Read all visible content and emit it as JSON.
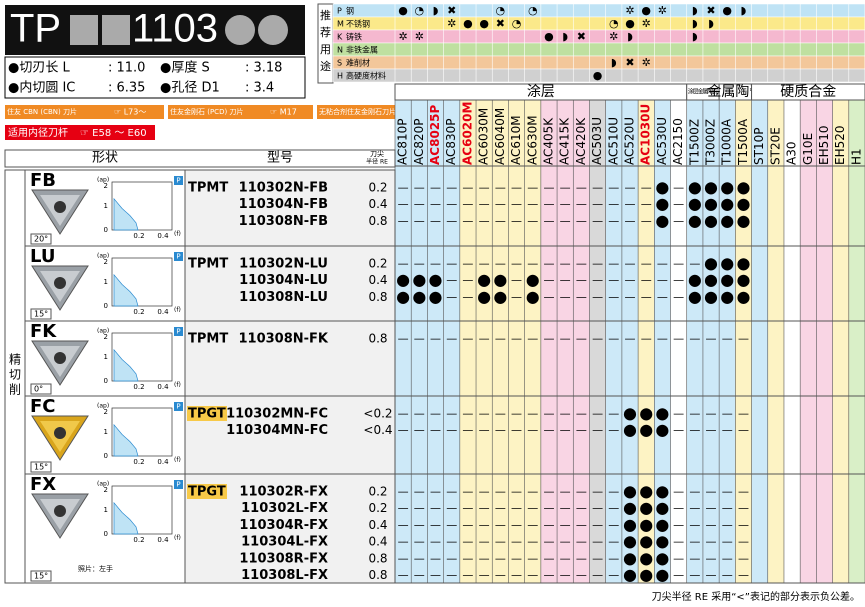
{
  "header": {
    "title_prefix": "TP",
    "title_code": "1103",
    "specs": [
      {
        "label": "●切刃长 L",
        "value": ": 11.0"
      },
      {
        "label": "●厚度 S",
        "value": ": 3.18"
      },
      {
        "label": "●内切圆 IC",
        "value": ": 6.35"
      },
      {
        "label": "●孔径 D1",
        "value": ": 3.4"
      }
    ],
    "links": [
      {
        "text": "住友 CBN (CBN) 刀片",
        "ref": "☞ L73～"
      },
      {
        "text": "住友金刚石 (PCD) 刀片",
        "ref": "☞ M17"
      },
      {
        "text": "无粘合剂住友金刚石刀片",
        "ref": "☞ M26"
      }
    ],
    "holder": {
      "text": "适用内径刀杆",
      "ref": "☞ E58 ～ E60"
    }
  },
  "application": {
    "label": [
      "推",
      "荐",
      "用",
      "途"
    ],
    "rows": [
      {
        "code": "P",
        "name": "钢",
        "color": "#bfe3f5",
        "marks": [
          "●",
          "◔",
          "◗",
          "✖",
          null,
          null,
          "◔",
          null,
          "◔",
          null,
          null,
          null,
          null,
          null,
          "✲",
          "●",
          "✲",
          null,
          "◗",
          "✖",
          "●",
          "◗",
          null,
          null,
          null,
          null,
          null,
          null,
          null
        ]
      },
      {
        "code": "M",
        "name": "不锈钢",
        "color": "#fbe98a",
        "marks": [
          null,
          null,
          null,
          "✲",
          "●",
          "●",
          "✖",
          "◔",
          null,
          null,
          null,
          null,
          null,
          "◔",
          "●",
          "✲",
          null,
          null,
          "◗",
          "◗",
          null,
          null,
          null,
          null,
          null,
          null,
          null,
          null,
          null
        ]
      },
      {
        "code": "K",
        "name": "铸铁",
        "color": "#f5b8cf",
        "marks": [
          "✲",
          "✲",
          null,
          null,
          null,
          null,
          null,
          null,
          null,
          "●",
          "◗",
          "✖",
          null,
          "✲",
          "◗",
          null,
          null,
          null,
          "◗",
          null,
          null,
          null,
          null,
          null,
          null,
          null,
          null,
          null,
          null
        ]
      },
      {
        "code": "N",
        "name": "非铁金属",
        "color": "#bfe0a0",
        "marks": [
          null,
          null,
          null,
          null,
          null,
          null,
          null,
          null,
          null,
          null,
          null,
          null,
          null,
          null,
          null,
          null,
          null,
          null,
          null,
          null,
          null,
          null,
          null,
          null,
          null,
          null,
          null,
          null,
          null
        ]
      },
      {
        "code": "S",
        "name": "难削材",
        "color": "#f3c79a",
        "marks": [
          null,
          null,
          null,
          null,
          null,
          null,
          null,
          null,
          null,
          null,
          null,
          null,
          null,
          "◗",
          "✖",
          "✲",
          null,
          null,
          null,
          null,
          null,
          null,
          null,
          null,
          null,
          null,
          null,
          null,
          null
        ]
      },
      {
        "code": "H",
        "name": "高硬度材料",
        "color": "#d0d0d0",
        "marks": [
          null,
          null,
          null,
          null,
          null,
          null,
          null,
          null,
          null,
          null,
          null,
          null,
          "●",
          null,
          null,
          null,
          null,
          null,
          null,
          null,
          null,
          null,
          null,
          null,
          null,
          null,
          null,
          null,
          null
        ]
      }
    ]
  },
  "grade_groups": [
    {
      "label": "涂层",
      "span": 18
    },
    {
      "label": "涂层金属陶瓷",
      "span": 2
    },
    {
      "label": "金属陶瓷",
      "span": 2
    },
    {
      "label": "硬质合金",
      "span": 7
    }
  ],
  "grades": [
    {
      "name": "AC810P",
      "bg": "#cde9f8",
      "color": "#000"
    },
    {
      "name": "AC820P",
      "bg": "#cde9f8",
      "color": "#000"
    },
    {
      "name": "AC8025P",
      "bg": "#cde9f8",
      "color": "#e60012"
    },
    {
      "name": "AC830P",
      "bg": "#cde9f8",
      "color": "#000"
    },
    {
      "name": "AC6020M",
      "bg": "#fdf3c4",
      "color": "#e60012"
    },
    {
      "name": "AC6030M",
      "bg": "#fdf3c4",
      "color": "#000"
    },
    {
      "name": "AC6040M",
      "bg": "#fdf3c4",
      "color": "#000"
    },
    {
      "name": "AC610M",
      "bg": "#fdf3c4",
      "color": "#000"
    },
    {
      "name": "AC630M",
      "bg": "#fdf3c4",
      "color": "#000"
    },
    {
      "name": "AC405K",
      "bg": "#f9d5e4",
      "color": "#000"
    },
    {
      "name": "AC415K",
      "bg": "#f9d5e4",
      "color": "#000"
    },
    {
      "name": "AC420K",
      "bg": "#f9d5e4",
      "color": "#000"
    },
    {
      "name": "AC503U",
      "bg": "#d9d9d9",
      "color": "#000"
    },
    {
      "name": "AC510U",
      "bg": "#cde9f8",
      "color": "#000"
    },
    {
      "name": "AC520U",
      "bg": "#cde9f8",
      "color": "#000"
    },
    {
      "name": "AC1030U",
      "bg": "#fdf3c4",
      "color": "#e60012"
    },
    {
      "name": "AC530U",
      "bg": "#cde9f8",
      "color": "#000"
    },
    {
      "name": "AC2150",
      "bg": "#ffffff",
      "color": "#000"
    },
    {
      "name": "T1500Z",
      "bg": "#cde9f8",
      "color": "#000"
    },
    {
      "name": "T3000Z",
      "bg": "#cde9f8",
      "color": "#000"
    },
    {
      "name": "T1000A",
      "bg": "#cde9f8",
      "color": "#000"
    },
    {
      "name": "T1500A",
      "bg": "#fdf3c4",
      "color": "#000"
    },
    {
      "name": "ST10P",
      "bg": "#cde9f8",
      "color": "#000"
    },
    {
      "name": "ST20E",
      "bg": "#fdf3c4",
      "color": "#000"
    },
    {
      "name": "A30",
      "bg": "#ffffff",
      "color": "#000"
    },
    {
      "name": "G10E",
      "bg": "#f9d5e4",
      "color": "#000"
    },
    {
      "name": "EH510",
      "bg": "#f9d5e4",
      "color": "#000"
    },
    {
      "name": "EH520",
      "bg": "#fdf3c4",
      "color": "#000"
    },
    {
      "name": "H1",
      "bg": "#d9efc7",
      "color": "#000"
    }
  ],
  "table": {
    "headers": {
      "shape": "形状",
      "model": "型号",
      "re_1": "刀尖",
      "re_2": "半径 RE"
    },
    "side_label": [
      "精",
      "切",
      "削"
    ],
    "chip_chart": {
      "y_unit": "(ap)",
      "x_unit": "(f)",
      "y_2": "2",
      "y_1": "1",
      "y_0": "0",
      "x_1": "0.2",
      "x_2": "0.4",
      "badge": "P"
    },
    "tools": [
      {
        "name": "FB",
        "angle": "20°",
        "rows": [
          {
            "prefix": "TPMT",
            "code": "110302N-FB",
            "re": 0.2,
            "cells": [
              "—",
              "—",
              "—",
              "—",
              "—",
              "—",
              "—",
              "—",
              "—",
              "—",
              "—",
              "—",
              "—",
              "—",
              "—",
              "—",
              "●",
              "—",
              "●",
              "●",
              "●",
              "●",
              null,
              null,
              null,
              null,
              null,
              null,
              null
            ]
          },
          {
            "code": "110304N-FB",
            "re": 0.4,
            "cells": [
              "—",
              "—",
              "—",
              "—",
              "—",
              "—",
              "—",
              "—",
              "—",
              "—",
              "—",
              "—",
              "—",
              "—",
              "—",
              "—",
              "●",
              "—",
              "●",
              "●",
              "●",
              "●",
              null,
              null,
              null,
              null,
              null,
              null,
              null
            ]
          },
          {
            "code": "110308N-FB",
            "re": 0.8,
            "cells": [
              "—",
              "—",
              "—",
              "—",
              "—",
              "—",
              "—",
              "—",
              "—",
              "—",
              "—",
              "—",
              "—",
              "—",
              "—",
              "—",
              "●",
              "—",
              "●",
              "●",
              "●",
              "●",
              null,
              null,
              null,
              null,
              null,
              null,
              null
            ]
          }
        ]
      },
      {
        "name": "LU",
        "angle": "15°",
        "rows": [
          {
            "prefix": "TPMT",
            "code": "110302N-LU",
            "re": 0.2,
            "cells": [
              "—",
              "—",
              "—",
              "—",
              "—",
              "—",
              "—",
              "—",
              "—",
              "—",
              "—",
              "—",
              "—",
              "—",
              "—",
              "—",
              "—",
              "—",
              "—",
              "●",
              "●",
              "●",
              null,
              null,
              null,
              null,
              null,
              null,
              null
            ]
          },
          {
            "code": "110304N-LU",
            "re": 0.4,
            "cells": [
              "●",
              "●",
              "●",
              "—",
              "—",
              "●",
              "●",
              "—",
              "●",
              "—",
              "—",
              "—",
              "—",
              "—",
              "—",
              "—",
              "—",
              "—",
              "●",
              "●",
              "●",
              "●",
              null,
              null,
              null,
              null,
              null,
              null,
              null
            ]
          },
          {
            "code": "110308N-LU",
            "re": 0.8,
            "cells": [
              "●",
              "●",
              "●",
              "—",
              "—",
              "●",
              "●",
              "—",
              "●",
              "—",
              "—",
              "—",
              "—",
              "—",
              "—",
              "—",
              "—",
              "—",
              "●",
              "●",
              "●",
              "●",
              null,
              null,
              null,
              null,
              null,
              null,
              null
            ]
          }
        ]
      },
      {
        "name": "FK",
        "angle": "0°",
        "rows": [
          {
            "prefix": "TPMT",
            "code": "110308N-FK",
            "re": 0.8,
            "cells": [
              "—",
              "—",
              "—",
              "—",
              "—",
              "—",
              "—",
              "—",
              "—",
              "—",
              "—",
              "—",
              "—",
              "—",
              "—",
              "—",
              "—",
              "—",
              "—",
              "—",
              "—",
              "—",
              null,
              null,
              null,
              null,
              null,
              null,
              null
            ]
          }
        ]
      },
      {
        "name": "FC",
        "angle": "15°",
        "rows": [
          {
            "prefix": "TPGT",
            "code": "110302MN-FC",
            "re": "<0.2",
            "cells": [
              "—",
              "—",
              "—",
              "—",
              "—",
              "—",
              "—",
              "—",
              "—",
              "—",
              "—",
              "—",
              "—",
              "—",
              "●",
              "●",
              "●",
              "—",
              "—",
              "—",
              "—",
              "—",
              null,
              null,
              null,
              null,
              null,
              null,
              null
            ]
          },
          {
            "code": "110304MN-FC",
            "re": "<0.4",
            "cells": [
              "—",
              "—",
              "—",
              "—",
              "—",
              "—",
              "—",
              "—",
              "—",
              "—",
              "—",
              "—",
              "—",
              "—",
              "●",
              "●",
              "●",
              "—",
              "—",
              "—",
              "—",
              "—",
              null,
              null,
              null,
              null,
              null,
              null,
              null
            ]
          }
        ]
      },
      {
        "name": "FX",
        "angle": "15°",
        "note": "照片：左手",
        "rows": [
          {
            "prefix": "TPGT",
            "code": "110302R-FX",
            "re": 0.2,
            "cells": [
              "—",
              "—",
              "—",
              "—",
              "—",
              "—",
              "—",
              "—",
              "—",
              "—",
              "—",
              "—",
              "—",
              "—",
              "●",
              "●",
              "●",
              "—",
              "—",
              "—",
              "—",
              "—",
              null,
              null,
              null,
              null,
              null,
              null,
              null
            ]
          },
          {
            "code": "110302L-FX",
            "re": 0.2,
            "cells": [
              "—",
              "—",
              "—",
              "—",
              "—",
              "—",
              "—",
              "—",
              "—",
              "—",
              "—",
              "—",
              "—",
              "—",
              "●",
              "●",
              "●",
              "—",
              "—",
              "—",
              "—",
              "—",
              null,
              null,
              null,
              null,
              null,
              null,
              null
            ]
          },
          {
            "code": "110304R-FX",
            "re": 0.4,
            "cells": [
              "—",
              "—",
              "—",
              "—",
              "—",
              "—",
              "—",
              "—",
              "—",
              "—",
              "—",
              "—",
              "—",
              "—",
              "●",
              "●",
              "●",
              "—",
              "—",
              "—",
              "—",
              "—",
              null,
              null,
              null,
              null,
              null,
              null,
              null
            ]
          },
          {
            "code": "110304L-FX",
            "re": 0.4,
            "cells": [
              "—",
              "—",
              "—",
              "—",
              "—",
              "—",
              "—",
              "—",
              "—",
              "—",
              "—",
              "—",
              "—",
              "—",
              "●",
              "●",
              "●",
              "—",
              "—",
              "—",
              "—",
              "—",
              null,
              null,
              null,
              null,
              null,
              null,
              null
            ]
          },
          {
            "code": "110308R-FX",
            "re": 0.8,
            "cells": [
              "—",
              "—",
              "—",
              "—",
              "—",
              "—",
              "—",
              "—",
              "—",
              "—",
              "—",
              "—",
              "—",
              "—",
              "●",
              "●",
              "●",
              "—",
              "—",
              "—",
              "—",
              "—",
              null,
              null,
              null,
              null,
              null,
              null,
              null
            ]
          },
          {
            "code": "110308L-FX",
            "re": 0.8,
            "cells": [
              "—",
              "—",
              "—",
              "—",
              "—",
              "—",
              "—",
              "—",
              "—",
              "—",
              "—",
              "—",
              "—",
              "—",
              "●",
              "●",
              "●",
              "—",
              "—",
              "—",
              "—",
              "—",
              null,
              null,
              null,
              null,
              null,
              null,
              null
            ]
          }
        ]
      }
    ]
  },
  "footnote": "刀尖半径 RE 采用“<”表记的部分表示负公差。"
}
